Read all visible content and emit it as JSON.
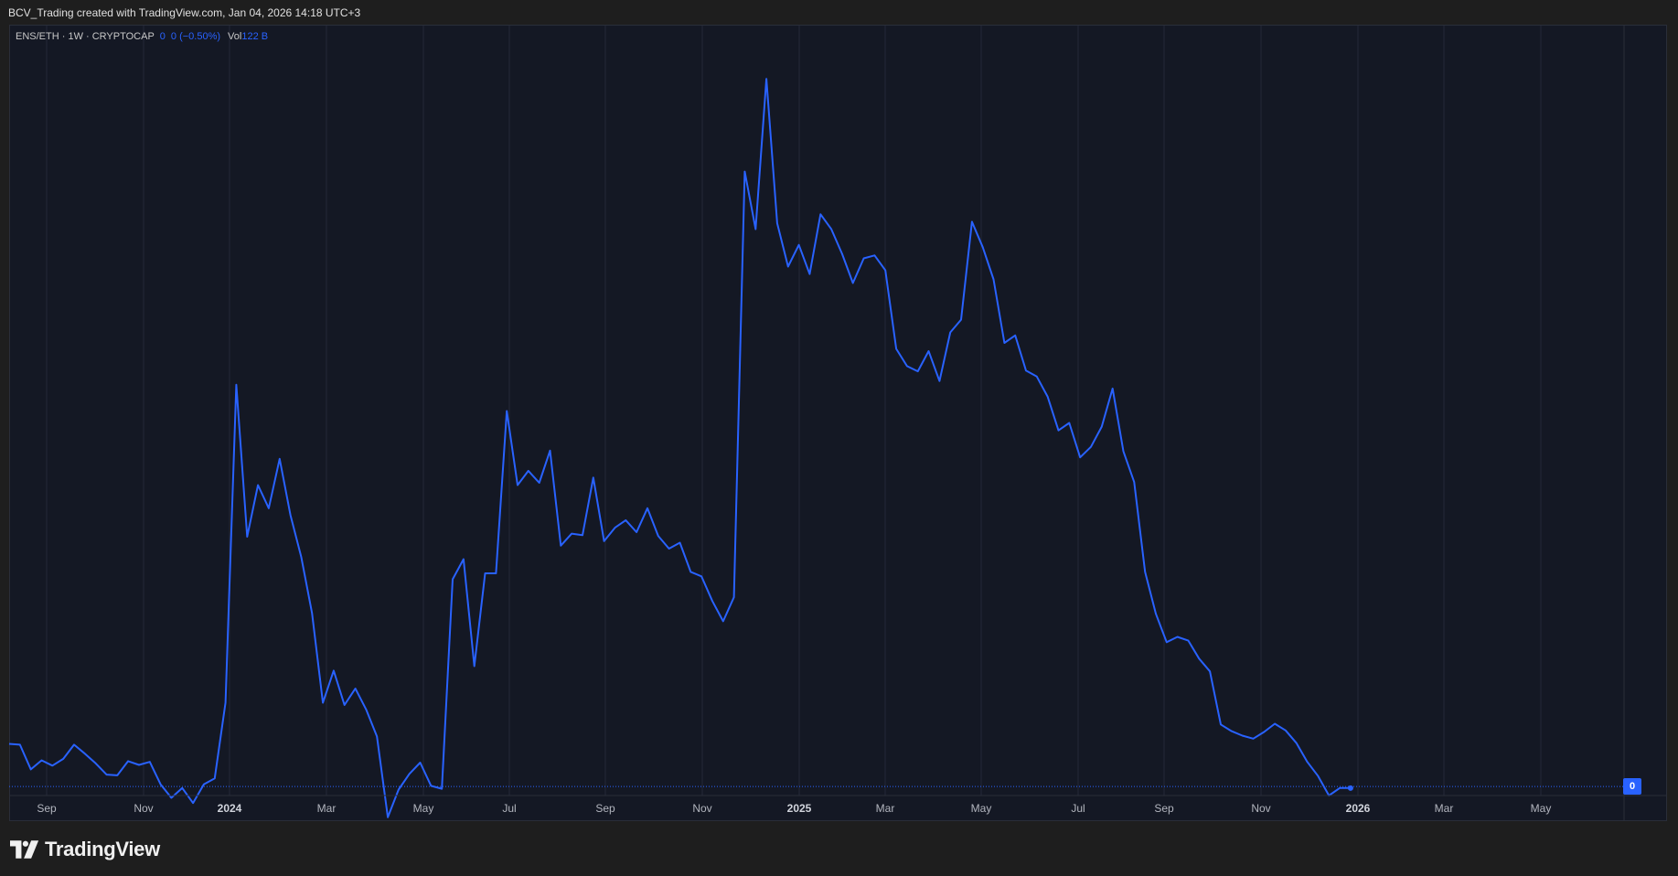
{
  "header": {
    "attribution": "BCV_Trading created with TradingView.com, Jan 04, 2026 14:18 UTC+3"
  },
  "legend": {
    "symbol": "ENS/ETH · 1W · CRYPTOCAP",
    "value": "0",
    "change": "0 (−0.50%)",
    "vol_label": "Vol",
    "vol_value": "122 B"
  },
  "price_badge": "0",
  "footer": {
    "brand": "TradingView"
  },
  "colors": {
    "line": "#2962ff",
    "background": "#141824",
    "grid": "#232838",
    "text": "#b2b5be"
  },
  "chart_data": {
    "type": "line",
    "title": "",
    "xlabel": "",
    "ylabel": "",
    "ylim": [
      -0.1,
      1.0
    ],
    "grid": true,
    "x_tick_labels": [
      "Sep",
      "Nov",
      "2024",
      "Mar",
      "May",
      "Jul",
      "Sep",
      "Nov",
      "2025",
      "Mar",
      "May",
      "Jul",
      "Sep",
      "Nov",
      "2026",
      "Mar",
      "May"
    ],
    "x_tick_bold": [
      false,
      false,
      true,
      false,
      false,
      false,
      false,
      false,
      true,
      false,
      false,
      false,
      false,
      false,
      true,
      false,
      false
    ],
    "last_value_marker": 0,
    "series": [
      {
        "values": [
          0.057,
          0.056,
          0.023,
          0.035,
          0.028,
          0.037,
          0.056,
          0.044,
          0.031,
          0.016,
          0.015,
          0.034,
          0.029,
          0.033,
          0.003,
          -0.015,
          -0.002,
          -0.022,
          0.003,
          0.011,
          0.112,
          0.537,
          0.334,
          0.403,
          0.372,
          0.438,
          0.363,
          0.307,
          0.232,
          0.112,
          0.155,
          0.109,
          0.131,
          0.103,
          0.067,
          -0.041,
          -0.004,
          0.017,
          0.032,
          0.001,
          -0.003,
          0.277,
          0.304,
          0.161,
          0.285,
          0.285,
          0.502,
          0.403,
          0.422,
          0.406,
          0.449,
          0.322,
          0.338,
          0.336,
          0.413,
          0.328,
          0.346,
          0.356,
          0.34,
          0.372,
          0.335,
          0.318,
          0.326,
          0.287,
          0.281,
          0.248,
          0.221,
          0.253,
          0.822,
          0.745,
          0.946,
          0.753,
          0.695,
          0.724,
          0.685,
          0.765,
          0.745,
          0.712,
          0.673,
          0.706,
          0.71,
          0.69,
          0.585,
          0.562,
          0.555,
          0.582,
          0.542,
          0.607,
          0.624,
          0.755,
          0.721,
          0.678,
          0.593,
          0.603,
          0.556,
          0.548,
          0.521,
          0.476,
          0.486,
          0.44,
          0.454,
          0.481,
          0.532,
          0.448,
          0.407,
          0.287,
          0.231,
          0.193,
          0.2,
          0.195,
          0.171,
          0.154,
          0.083,
          0.074,
          0.068,
          0.064,
          0.073,
          0.084,
          0.075,
          0.058,
          0.033,
          0.014,
          -0.012,
          -0.002,
          -0.002
        ]
      }
    ]
  }
}
